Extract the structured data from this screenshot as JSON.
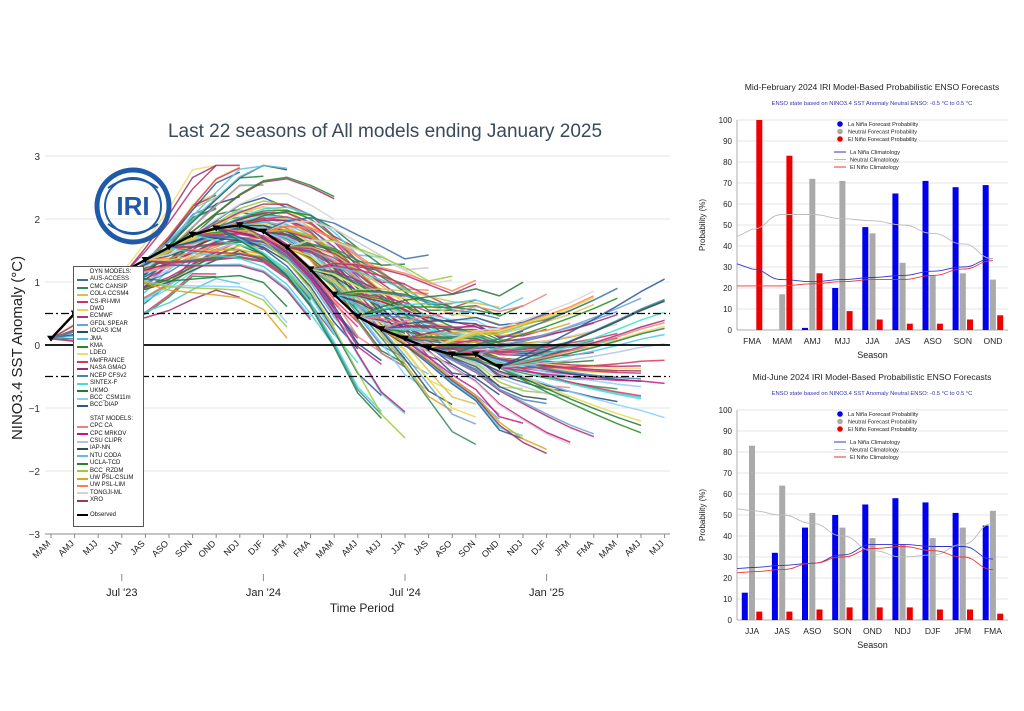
{
  "main_chart": {
    "title": "Last 22 seasons of All models ending January 2025",
    "ylabel": "NINO3.4 SST Anomaly (°C)",
    "xlabel": "Time Period",
    "y_ticks": [
      "3",
      "2",
      "1",
      "0",
      "−1",
      "−2",
      "−3"
    ],
    "season_labels": [
      "MAM",
      "AMJ",
      "MJJ",
      "JJA",
      "JAS",
      "ASO",
      "SON",
      "OND",
      "NDJ",
      "DJF",
      "JFM",
      "FMA",
      "MAM",
      "AMJ",
      "MJJ",
      "JJA",
      "JAS",
      "ASO",
      "SON",
      "OND",
      "NDJ",
      "DJF",
      "JFM",
      "FMA",
      "MAM",
      "AMJ",
      "MJJ"
    ],
    "period_labels": [
      "Jul '23",
      "Jan '24",
      "Jul '24",
      "Jan '25"
    ],
    "logo_text": "IRI",
    "legend": {
      "dyn_header": "DYN MODELS:",
      "dyn_models": [
        {
          "name": "AUS-ACCESS",
          "color": "#3a6fa0"
        },
        {
          "name": "CMC CANSIP",
          "color": "#2e8b57"
        },
        {
          "name": "COLA CCSM4",
          "color": "#d4c24a"
        },
        {
          "name": "CS-IRI-MM",
          "color": "#c8326e"
        },
        {
          "name": "DWD",
          "color": "#e7d84a"
        },
        {
          "name": "ECMWF",
          "color": "#b03070"
        },
        {
          "name": "GFDL SPEAR",
          "color": "#6aa1d6"
        },
        {
          "name": "IOCAS ICM",
          "color": "#1f4e79"
        },
        {
          "name": "JMA",
          "color": "#48c9e0"
        },
        {
          "name": "KMA",
          "color": "#228b22"
        },
        {
          "name": "LDEO",
          "color": "#f0dc6c"
        },
        {
          "name": "MetFRANCE",
          "color": "#d9365e"
        },
        {
          "name": "NASA GMAO",
          "color": "#9b2f6b"
        },
        {
          "name": "NCEP CFSv2",
          "color": "#4682b4"
        },
        {
          "name": "SINTEX-F",
          "color": "#40e0d0"
        },
        {
          "name": "UKMO",
          "color": "#1e7b3a"
        },
        {
          "name": "BCC_CSM11m",
          "color": "#87cefa"
        },
        {
          "name": "BCC DIAP",
          "color": "#2a5599"
        }
      ],
      "stat_header": "STAT MODELS:",
      "stat_models": [
        {
          "name": "CPC CA",
          "color": "#f08080"
        },
        {
          "name": "CPC MRKOV",
          "color": "#c71585"
        },
        {
          "name": "CSU CLIPR",
          "color": "#b0c4de"
        },
        {
          "name": "IAP-NN",
          "color": "#2f4f4f"
        },
        {
          "name": "NTU CODA",
          "color": "#5fbfe0"
        },
        {
          "name": "UCLA-TCD",
          "color": "#2e7d32"
        },
        {
          "name": "BCC_RZDM",
          "color": "#9acd32"
        },
        {
          "name": "UW PSL-CSLIM",
          "color": "#daa520"
        },
        {
          "name": "UW PSL-LIM",
          "color": "#ff7f50"
        },
        {
          "name": "TONGJI-ML",
          "color": "#d3d3d3"
        },
        {
          "name": "XRO",
          "color": "#a0306e"
        }
      ],
      "observed_label": "Observed"
    }
  },
  "chart_data": [
    {
      "type": "line",
      "title": "Last 22 seasons of All models ending January 2025",
      "xlabel": "Time Period",
      "ylabel": "NINO3.4 SST Anomaly (°C)",
      "ylim": [
        -3,
        3
      ],
      "reference_lines": [
        0.5,
        0,
        -0.5
      ],
      "x": [
        "MAM",
        "AMJ",
        "MJJ",
        "JJA",
        "JAS",
        "ASO",
        "SON",
        "OND",
        "NDJ",
        "DJF",
        "JFM",
        "FMA",
        "MAM",
        "AMJ",
        "MJJ",
        "JJA",
        "JAS",
        "ASO",
        "SON",
        "OND",
        "NDJ",
        "DJF",
        "JFM",
        "FMA",
        "MAM",
        "AMJ",
        "MJJ"
      ],
      "series": [
        {
          "name": "Observed",
          "values": [
            0.1,
            0.5,
            0.85,
            1.15,
            1.35,
            1.55,
            1.75,
            1.85,
            1.9,
            1.8,
            1.55,
            1.2,
            0.8,
            0.45,
            0.25,
            0.1,
            -0.05,
            -0.15,
            -0.15,
            -0.35,
            null,
            null,
            null,
            null,
            null,
            null,
            null
          ]
        }
      ]
    },
    {
      "type": "bar",
      "title": "Mid-February 2024 IRI Model-Based Probabilistic ENSO Forecasts",
      "subtitle": "ENSO state based on NINO3.4 SST Anomaly Neutral ENSO: -0.5 °C to 0.5 °C",
      "xlabel": "Season",
      "ylabel": "Probability (%)",
      "ylim": [
        0,
        100
      ],
      "categories": [
        "FMA",
        "MAM",
        "AMJ",
        "MJJ",
        "JJA",
        "JAS",
        "ASO",
        "SON",
        "OND"
      ],
      "series": [
        {
          "name": "La Niña Forecast Probability",
          "color": "#0000ee",
          "values": [
            0,
            0,
            1,
            20,
            49,
            65,
            71,
            68,
            69
          ]
        },
        {
          "name": "Neutral Forecast Probability",
          "color": "#aaaaaa",
          "values": [
            0,
            17,
            72,
            71,
            46,
            32,
            26,
            27,
            24
          ]
        },
        {
          "name": "El Niño Forecast Probability",
          "color": "#ee0000",
          "values": [
            100,
            83,
            27,
            9,
            5,
            3,
            3,
            5,
            7
          ]
        }
      ],
      "climatology": [
        {
          "name": "La Niña Climatology",
          "color": "#3333cc",
          "values": [
            29,
            24,
            23,
            24,
            25,
            26,
            28,
            30,
            34
          ]
        },
        {
          "name": "Neutral Climatology",
          "color": "#bbbbbb",
          "values": [
            48,
            55,
            55,
            53,
            52,
            50,
            46,
            41,
            34
          ]
        },
        {
          "name": "El Niño Climatology",
          "color": "#ee3333",
          "values": [
            21,
            21,
            22,
            23,
            24,
            24,
            26,
            29,
            33
          ]
        }
      ]
    },
    {
      "type": "bar",
      "title": "Mid-June 2024 IRI Model-Based Probabilistic ENSO Forecasts",
      "subtitle": "ENSO state based on NINO3.4 SST Anomaly Neutral ENSO: -0.5 °C to 0.5 °C",
      "xlabel": "Season",
      "ylabel": "Probability (%)",
      "ylim": [
        0,
        100
      ],
      "categories": [
        "JJA",
        "JAS",
        "ASO",
        "SON",
        "OND",
        "NDJ",
        "DJF",
        "JFM",
        "FMA"
      ],
      "series": [
        {
          "name": "La Niña Forecast Probability",
          "color": "#0000ee",
          "values": [
            13,
            32,
            44,
            50,
            55,
            58,
            56,
            51,
            45
          ]
        },
        {
          "name": "Neutral Forecast Probability",
          "color": "#aaaaaa",
          "values": [
            83,
            64,
            51,
            44,
            39,
            36,
            39,
            44,
            52
          ]
        },
        {
          "name": "El Niño Forecast Probability",
          "color": "#ee0000",
          "values": [
            4,
            4,
            5,
            6,
            6,
            6,
            5,
            5,
            3
          ]
        }
      ],
      "climatology": [
        {
          "name": "La Niña Climatology",
          "color": "#3333cc",
          "values": [
            25,
            26,
            27,
            31,
            36,
            36,
            35,
            35,
            29
          ]
        },
        {
          "name": "Neutral Climatology",
          "color": "#bbbbbb",
          "values": [
            52,
            50,
            46,
            40,
            33,
            30,
            31,
            36,
            46
          ]
        },
        {
          "name": "El Niño Climatology",
          "color": "#ee3333",
          "values": [
            23,
            24,
            27,
            30,
            34,
            35,
            33,
            30,
            24
          ]
        }
      ]
    }
  ]
}
